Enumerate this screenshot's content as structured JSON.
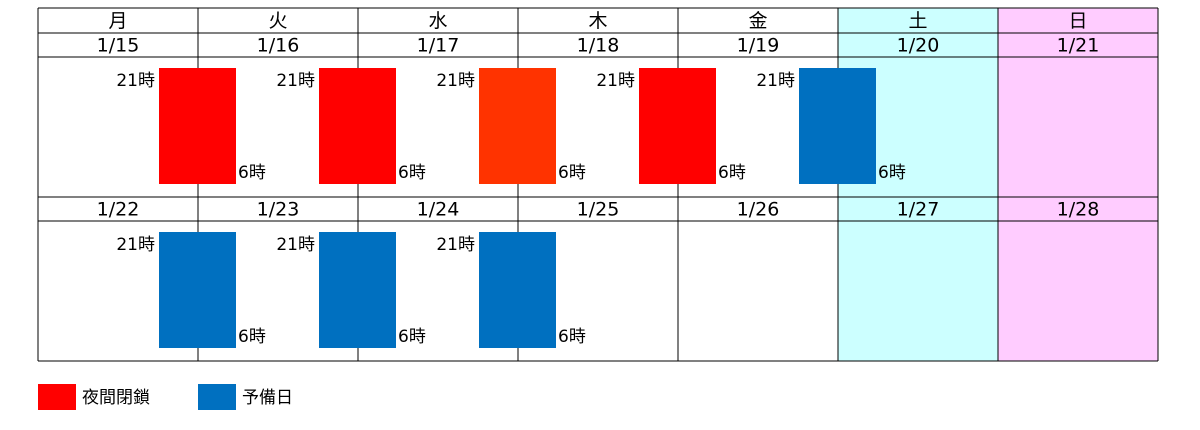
{
  "calendar": {
    "weekdays": [
      {
        "label": "月"
      },
      {
        "label": "火"
      },
      {
        "label": "水"
      },
      {
        "label": "木"
      },
      {
        "label": "金"
      },
      {
        "label": "土",
        "color": "#ccffff"
      },
      {
        "label": "日",
        "color": "#ffccff"
      }
    ],
    "weeks": [
      {
        "days": [
          {
            "date": "1/15",
            "event": {
              "start": "21時",
              "end": "6時",
              "color": "#ff0000"
            }
          },
          {
            "date": "1/16",
            "event": {
              "start": "21時",
              "end": "6時",
              "color": "#ff0000"
            }
          },
          {
            "date": "1/17",
            "event": {
              "start": "21時",
              "end": "6時",
              "color": "#ff3300"
            }
          },
          {
            "date": "1/18",
            "event": {
              "start": "21時",
              "end": "6時",
              "color": "#ff0000"
            }
          },
          {
            "date": "1/19",
            "event": {
              "start": "21時",
              "end": "6時",
              "color": "#0070c0"
            }
          },
          {
            "date": "1/20"
          },
          {
            "date": "1/21"
          }
        ]
      },
      {
        "days": [
          {
            "date": "1/22",
            "event": {
              "start": "21時",
              "end": "6時",
              "color": "#0070c0"
            }
          },
          {
            "date": "1/23",
            "event": {
              "start": "21時",
              "end": "6時",
              "color": "#0070c0"
            }
          },
          {
            "date": "1/24",
            "event": {
              "start": "21時",
              "end": "6時",
              "color": "#0070c0"
            }
          },
          {
            "date": "1/25"
          },
          {
            "date": "1/26"
          },
          {
            "date": "1/27"
          },
          {
            "date": "1/28"
          }
        ]
      }
    ]
  },
  "legend": [
    {
      "label": "夜間閉鎖",
      "color": "#ff0000"
    },
    {
      "label": "予備日",
      "color": "#0070c0"
    }
  ]
}
